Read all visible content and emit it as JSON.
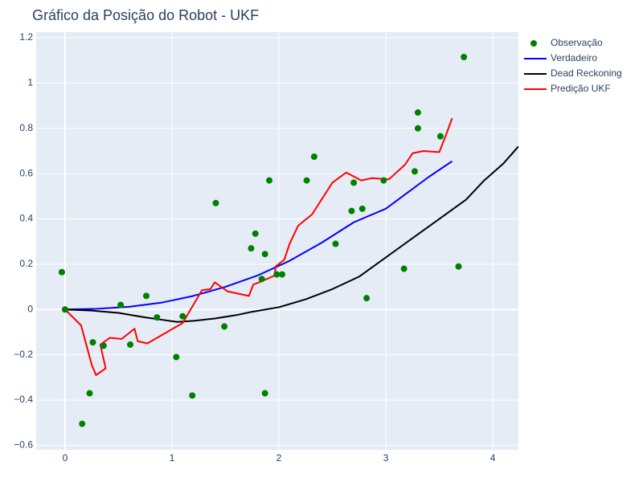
{
  "chart_data": {
    "type": "scatter",
    "title": "Gráfico da Posição do Robot - UKF",
    "xlabel": "",
    "ylabel": "",
    "xlim": [
      -0.27,
      4.24
    ],
    "ylim": [
      -0.62,
      1.225
    ],
    "x_ticks": [
      0,
      1,
      2,
      3,
      4
    ],
    "x_tick_labels": [
      "0",
      "1",
      "2",
      "3",
      "4"
    ],
    "y_ticks": [
      -0.6,
      -0.4,
      -0.2,
      0,
      0.2,
      0.4,
      0.6,
      0.8,
      1,
      1.2
    ],
    "y_tick_labels": [
      "−0.6",
      "−0.4",
      "−0.2",
      "0",
      "0.2",
      "0.4",
      "0.6",
      "0.8",
      "1",
      "1.2"
    ],
    "grid": true,
    "legend_position": "top-right",
    "series": [
      {
        "name": "Observação",
        "mode": "markers",
        "color": "#008000",
        "points": [
          [
            -0.03,
            0.165
          ],
          [
            0.0,
            0.0
          ],
          [
            0.16,
            -0.505
          ],
          [
            0.23,
            -0.37
          ],
          [
            0.26,
            -0.145
          ],
          [
            0.36,
            -0.16
          ],
          [
            0.52,
            0.02
          ],
          [
            0.61,
            -0.155
          ],
          [
            0.76,
            0.06
          ],
          [
            0.86,
            -0.035
          ],
          [
            1.04,
            -0.21
          ],
          [
            1.1,
            -0.03
          ],
          [
            1.19,
            -0.38
          ],
          [
            1.41,
            0.47
          ],
          [
            1.49,
            -0.075
          ],
          [
            1.74,
            0.27
          ],
          [
            1.78,
            0.335
          ],
          [
            1.84,
            0.135
          ],
          [
            1.87,
            0.245
          ],
          [
            1.87,
            -0.37
          ],
          [
            1.91,
            0.57
          ],
          [
            1.98,
            0.155
          ],
          [
            2.03,
            0.155
          ],
          [
            2.26,
            0.57
          ],
          [
            2.33,
            0.675
          ],
          [
            2.53,
            0.29
          ],
          [
            2.68,
            0.435
          ],
          [
            2.7,
            0.56
          ],
          [
            2.78,
            0.445
          ],
          [
            2.82,
            0.05
          ],
          [
            2.98,
            0.57
          ],
          [
            3.17,
            0.18
          ],
          [
            3.27,
            0.61
          ],
          [
            3.3,
            0.8
          ],
          [
            3.3,
            0.87
          ],
          [
            3.51,
            0.765
          ],
          [
            3.68,
            0.19
          ],
          [
            3.73,
            1.115
          ]
        ]
      },
      {
        "name": "Verdadeiro",
        "mode": "lines",
        "color": "#0000ff",
        "points": [
          [
            0,
            0
          ],
          [
            0.3,
            0.003
          ],
          [
            0.6,
            0.012
          ],
          [
            0.9,
            0.03
          ],
          [
            1.2,
            0.06
          ],
          [
            1.5,
            0.1
          ],
          [
            1.8,
            0.15
          ],
          [
            2.1,
            0.215
          ],
          [
            2.4,
            0.295
          ],
          [
            2.7,
            0.385
          ],
          [
            3.0,
            0.445
          ],
          [
            3.2,
            0.515
          ],
          [
            3.4,
            0.585
          ],
          [
            3.62,
            0.655
          ]
        ]
      },
      {
        "name": "Dead Reckoning",
        "mode": "lines",
        "color": "#000000",
        "points": [
          [
            0,
            0
          ],
          [
            0.25,
            -0.005
          ],
          [
            0.5,
            -0.015
          ],
          [
            0.75,
            -0.035
          ],
          [
            0.9,
            -0.045
          ],
          [
            1.05,
            -0.055
          ],
          [
            1.2,
            -0.05
          ],
          [
            1.4,
            -0.04
          ],
          [
            1.6,
            -0.025
          ],
          [
            1.75,
            -0.01
          ],
          [
            2.0,
            0.01
          ],
          [
            2.25,
            0.045
          ],
          [
            2.5,
            0.09
          ],
          [
            2.75,
            0.145
          ],
          [
            3.0,
            0.23
          ],
          [
            3.25,
            0.315
          ],
          [
            3.5,
            0.4
          ],
          [
            3.75,
            0.485
          ],
          [
            3.92,
            0.57
          ],
          [
            4.1,
            0.645
          ],
          [
            4.24,
            0.72
          ]
        ]
      },
      {
        "name": "Predição UKF",
        "mode": "lines",
        "color": "#ff0000",
        "points": [
          [
            0,
            0
          ],
          [
            0.15,
            -0.07
          ],
          [
            0.25,
            -0.245
          ],
          [
            0.29,
            -0.29
          ],
          [
            0.38,
            -0.26
          ],
          [
            0.33,
            -0.155
          ],
          [
            0.42,
            -0.125
          ],
          [
            0.53,
            -0.13
          ],
          [
            0.65,
            -0.085
          ],
          [
            0.68,
            -0.14
          ],
          [
            0.77,
            -0.15
          ],
          [
            1.1,
            -0.06
          ],
          [
            1.28,
            0.085
          ],
          [
            1.36,
            0.09
          ],
          [
            1.4,
            0.12
          ],
          [
            1.52,
            0.08
          ],
          [
            1.72,
            0.06
          ],
          [
            1.76,
            0.11
          ],
          [
            1.84,
            0.125
          ],
          [
            1.96,
            0.15
          ],
          [
            1.97,
            0.19
          ],
          [
            2.05,
            0.22
          ],
          [
            2.1,
            0.29
          ],
          [
            2.18,
            0.37
          ],
          [
            2.31,
            0.42
          ],
          [
            2.5,
            0.56
          ],
          [
            2.63,
            0.605
          ],
          [
            2.77,
            0.57
          ],
          [
            2.87,
            0.58
          ],
          [
            3.03,
            0.575
          ],
          [
            3.18,
            0.64
          ],
          [
            3.25,
            0.69
          ],
          [
            3.35,
            0.7
          ],
          [
            3.5,
            0.695
          ],
          [
            3.57,
            0.78
          ],
          [
            3.62,
            0.845
          ]
        ]
      }
    ]
  }
}
